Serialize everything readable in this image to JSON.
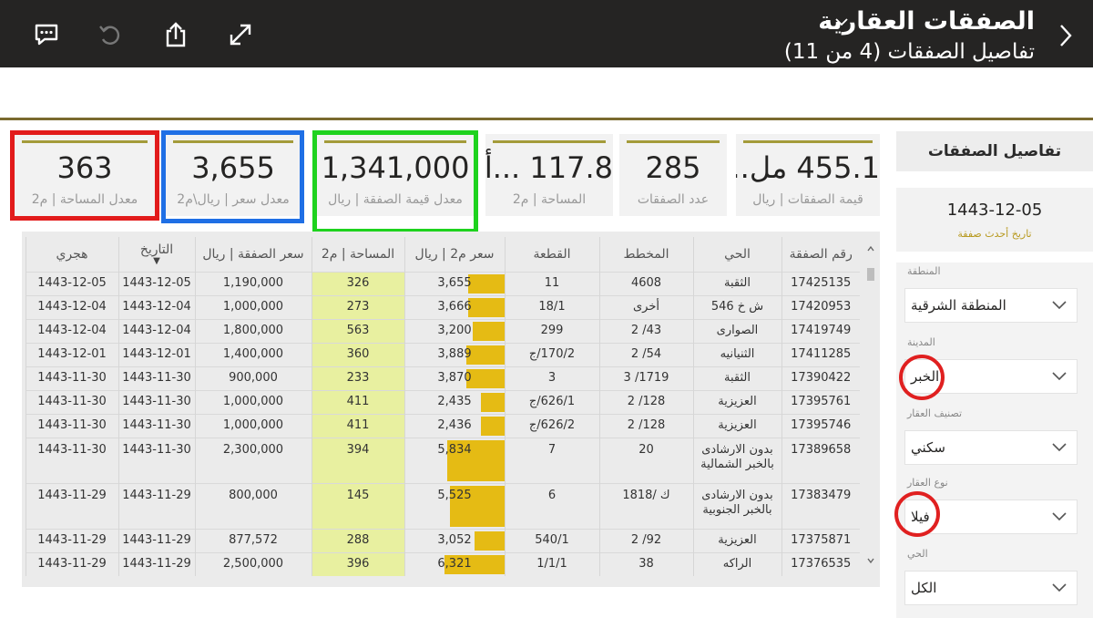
{
  "top_bar": {
    "app_title": "الصفقات العقارية",
    "page_subtitle": "تفاصيل الصفقات (4 من 11)",
    "icons": [
      "comment-icon",
      "undo-icon",
      "share-icon",
      "expand-icon",
      "chevron-right-icon",
      "chevron-down-icon"
    ]
  },
  "cards": [
    {
      "value": "455.1 مل...",
      "label": "قيمة الصفقات | ريال"
    },
    {
      "value": "285",
      "label": "عدد الصفقات"
    },
    {
      "value": "117.8 ...أ",
      "label": "المساحة | م2"
    },
    {
      "value": "1,341,000",
      "label": "معدل قيمة الصفقة | ريال"
    },
    {
      "value": "3,655",
      "label": "معدل سعر | ريال\\م2"
    },
    {
      "value": "363",
      "label": "معدل المساحة | م2"
    }
  ],
  "highlight_colors": {
    "red": "#e21b1b",
    "blue": "#1f6fe5",
    "green": "#1ed21e"
  },
  "table": {
    "headers": [
      "رقم الصفقة",
      "الحي",
      "المخطط",
      "القطعة",
      "سعر م2 | ريال",
      "المساحة | م2",
      "سعر الصفقة | ريال",
      "التاريخ",
      "هجري"
    ],
    "sort_indicator": "▼",
    "rows": [
      {
        "deal": "17425135",
        "district": "الثقبة",
        "plan": "4608",
        "plot": "11",
        "price_m2": "3,655",
        "price_frac": 0.6,
        "area": "326",
        "price": "1,190,000",
        "date": "1443-12-05",
        "hijri": "1443-12-05"
      },
      {
        "deal": "17420953",
        "district": "ش خ 546",
        "plan": "أخرى",
        "plot": "18/1",
        "price_m2": "3,666",
        "price_frac": 0.61,
        "area": "273",
        "price": "1,000,000",
        "date": "1443-12-04",
        "hijri": "1443-12-04"
      },
      {
        "deal": "17419749",
        "district": "الصوارى",
        "plan": "43/ 2",
        "plot": "299",
        "price_m2": "3,200",
        "price_frac": 0.53,
        "area": "563",
        "price": "1,800,000",
        "date": "1443-12-04",
        "hijri": "1443-12-04"
      },
      {
        "deal": "17411285",
        "district": "الثنيانيه",
        "plan": "54/ 2",
        "plot": "170/2/ج",
        "price_m2": "3,889",
        "price_frac": 0.64,
        "area": "360",
        "price": "1,400,000",
        "date": "1443-12-01",
        "hijri": "1443-12-01"
      },
      {
        "deal": "17390422",
        "district": "الثقبة",
        "plan": "1719/ 3",
        "plot": "3",
        "price_m2": "3,870",
        "price_frac": 0.64,
        "area": "233",
        "price": "900,000",
        "date": "1443-11-30",
        "hijri": "1443-11-30"
      },
      {
        "deal": "17395761",
        "district": "العزيزية",
        "plan": "128/ 2",
        "plot": "626/1/ج",
        "price_m2": "2,435",
        "price_frac": 0.4,
        "area": "411",
        "price": "1,000,000",
        "date": "1443-11-30",
        "hijri": "1443-11-30"
      },
      {
        "deal": "17395746",
        "district": "العزيزية",
        "plan": "128/ 2",
        "plot": "626/2/ج",
        "price_m2": "2,436",
        "price_frac": 0.4,
        "area": "411",
        "price": "1,000,000",
        "date": "1443-11-30",
        "hijri": "1443-11-30"
      },
      {
        "deal": "17389658",
        "district": "بدون الارشادى بالخبر الشمالية",
        "plan": "20",
        "plot": "7",
        "price_m2": "5,834",
        "price_frac": 0.96,
        "area": "394",
        "price": "2,300,000",
        "date": "1443-11-30",
        "hijri": "1443-11-30",
        "tall": true
      },
      {
        "deal": "17383479",
        "district": "بدون الارشادى بالخبر الجنوبية",
        "plan": "ك /1818",
        "plot": "6",
        "price_m2": "5,525",
        "price_frac": 0.91,
        "area": "145",
        "price": "800,000",
        "date": "1443-11-29",
        "hijri": "1443-11-29",
        "tall": true
      },
      {
        "deal": "17375871",
        "district": "العزيزية",
        "plan": "92/ 2",
        "plot": "540/1",
        "price_m2": "3,052",
        "price_frac": 0.5,
        "area": "288",
        "price": "877,572",
        "date": "1443-11-29",
        "hijri": "1443-11-29"
      },
      {
        "deal": "17376535",
        "district": "الراكه",
        "plan": "38",
        "plot": "1/1/1",
        "price_m2": "6,321",
        "price_frac": 1.0,
        "area": "396",
        "price": "2,500,000",
        "date": "1443-11-29",
        "hijri": "1443-11-29"
      }
    ]
  },
  "right_panel": {
    "title": "تفاصيل الصفقات",
    "latest_date": "1443-12-05",
    "latest_caption": "تاريخ أحدث صفقة",
    "slicers": [
      {
        "label": "المنطقة",
        "value": "المنطقة الشرقية"
      },
      {
        "label": "المدينة",
        "value": "الخبر"
      },
      {
        "label": "تصنيف العقار",
        "value": "سكني"
      },
      {
        "label": "نوع العقار",
        "value": "فيلا"
      },
      {
        "label": "الحي",
        "value": "الكل"
      }
    ]
  }
}
